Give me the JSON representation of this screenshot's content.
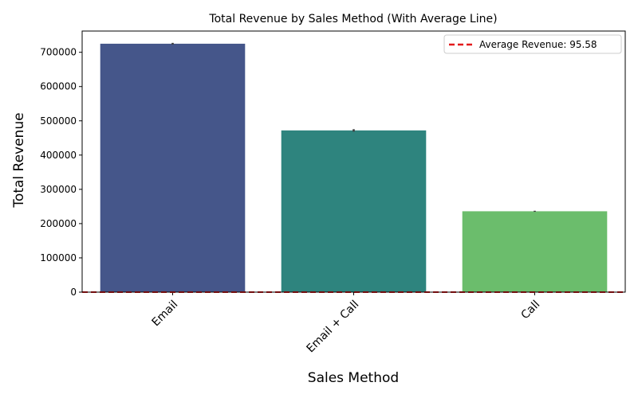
{
  "chart_data": {
    "type": "bar",
    "title": "Total Revenue by Sales Method (With Average Line)",
    "xlabel": "Sales Method",
    "ylabel": "Total Revenue",
    "categories": [
      "Email",
      "Email + Call",
      "Call"
    ],
    "values": [
      725000,
      472000,
      236000
    ],
    "error_bars": [
      [
        722500,
        727500
      ],
      [
        468500,
        475500
      ],
      [
        234500,
        237500
      ]
    ],
    "colors": [
      "#45568a",
      "#2e847e",
      "#6bbd6c"
    ],
    "ylim": [
      0,
      762000
    ],
    "yticks": [
      0,
      100000,
      200000,
      300000,
      400000,
      500000,
      600000,
      700000
    ],
    "ytick_labels": [
      "0",
      "100000",
      "200000",
      "300000",
      "400000",
      "500000",
      "600000",
      "700000"
    ],
    "reference_line": {
      "label": "Average Revenue: 95.58",
      "value": 95.58,
      "color": "#e31a1c",
      "style": "dashed"
    },
    "legend": {
      "placement": "top-right"
    },
    "grid": false
  }
}
